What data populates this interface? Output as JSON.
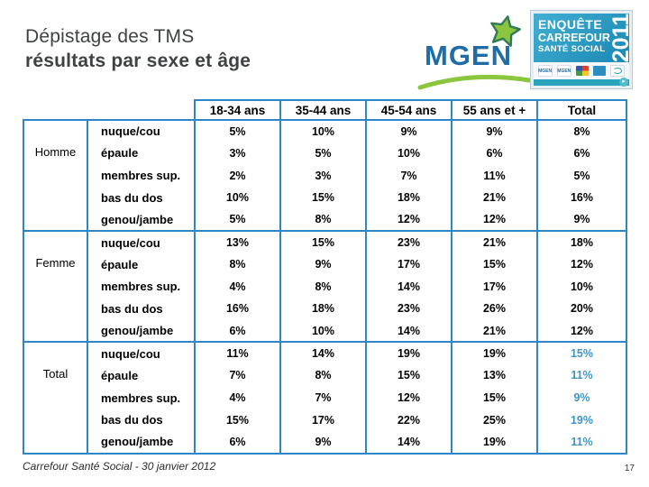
{
  "slide": {
    "title_line1": "Dépistage des TMS",
    "title_line2": "résultats par sexe et âge",
    "footer": "Carrefour Santé Social - 30 janvier 2012",
    "page_number": "17"
  },
  "logos": {
    "mgen_text": "MGEN",
    "badge": {
      "line1": "ENQUÊTE",
      "line2": "CARREFOUR",
      "line3": "SANTÉ SOCIAL",
      "year": "2011",
      "arrow_icon": "play-arrow-icon",
      "partner_logo_icons": [
        "mgen-mini-logo",
        "mgen-mini-logo-2",
        "colored-squares-logo",
        "blue-square-logo",
        "teal-scribble-logo"
      ]
    },
    "star_icon": "star-icon",
    "swoosh_icon": "swoosh-icon"
  },
  "colors": {
    "table_border": "#2e86c8",
    "total_highlight": "#3e96c8",
    "title_text": "#3f4243",
    "mgen_blue": "#1f6ca6",
    "mgen_green": "#8cc63f",
    "badge_blue_dark": "#1b87b4",
    "badge_blue_light": "#41b0d2",
    "badge_teal": "#2aa3bd"
  },
  "chart_data": {
    "type": "table",
    "title": "Dépistage des TMS — résultats par sexe et âge",
    "col_headers": [
      "18-34 ans",
      "35-44 ans",
      "45-54 ans",
      "55 ans et +",
      "Total"
    ],
    "row_labels": [
      "nuque/cou",
      "épaule",
      "membres sup.",
      "bas du dos",
      "genou/jambe"
    ],
    "groups": [
      {
        "name": "Homme",
        "highlight_total_column": false,
        "rows": [
          {
            "label": "nuque/cou",
            "values": [
              "5%",
              "10%",
              "9%",
              "9%",
              "8%"
            ]
          },
          {
            "label": "épaule",
            "values": [
              "3%",
              "5%",
              "10%",
              "6%",
              "6%"
            ]
          },
          {
            "label": "membres sup.",
            "values": [
              "2%",
              "3%",
              "7%",
              "11%",
              "5%"
            ]
          },
          {
            "label": "bas du dos",
            "values": [
              "10%",
              "15%",
              "18%",
              "21%",
              "16%"
            ]
          },
          {
            "label": "genou/jambe",
            "values": [
              "5%",
              "8%",
              "12%",
              "12%",
              "9%"
            ]
          }
        ]
      },
      {
        "name": "Femme",
        "highlight_total_column": false,
        "rows": [
          {
            "label": "nuque/cou",
            "values": [
              "13%",
              "15%",
              "23%",
              "21%",
              "18%"
            ]
          },
          {
            "label": "épaule",
            "values": [
              "8%",
              "9%",
              "17%",
              "15%",
              "12%"
            ]
          },
          {
            "label": "membres sup.",
            "values": [
              "4%",
              "8%",
              "14%",
              "17%",
              "10%"
            ]
          },
          {
            "label": "bas du dos",
            "values": [
              "16%",
              "18%",
              "23%",
              "26%",
              "20%"
            ]
          },
          {
            "label": "genou/jambe",
            "values": [
              "6%",
              "10%",
              "14%",
              "21%",
              "12%"
            ]
          }
        ]
      },
      {
        "name": "Total",
        "highlight_total_column": true,
        "rows": [
          {
            "label": "nuque/cou",
            "values": [
              "11%",
              "14%",
              "19%",
              "19%",
              "15%"
            ]
          },
          {
            "label": "épaule",
            "values": [
              "7%",
              "8%",
              "15%",
              "13%",
              "11%"
            ]
          },
          {
            "label": "membres sup.",
            "values": [
              "4%",
              "7%",
              "12%",
              "15%",
              "9%"
            ]
          },
          {
            "label": "bas du dos",
            "values": [
              "15%",
              "17%",
              "22%",
              "25%",
              "19%"
            ]
          },
          {
            "label": "genou/jambe",
            "values": [
              "6%",
              "9%",
              "14%",
              "19%",
              "11%"
            ]
          }
        ]
      }
    ]
  }
}
